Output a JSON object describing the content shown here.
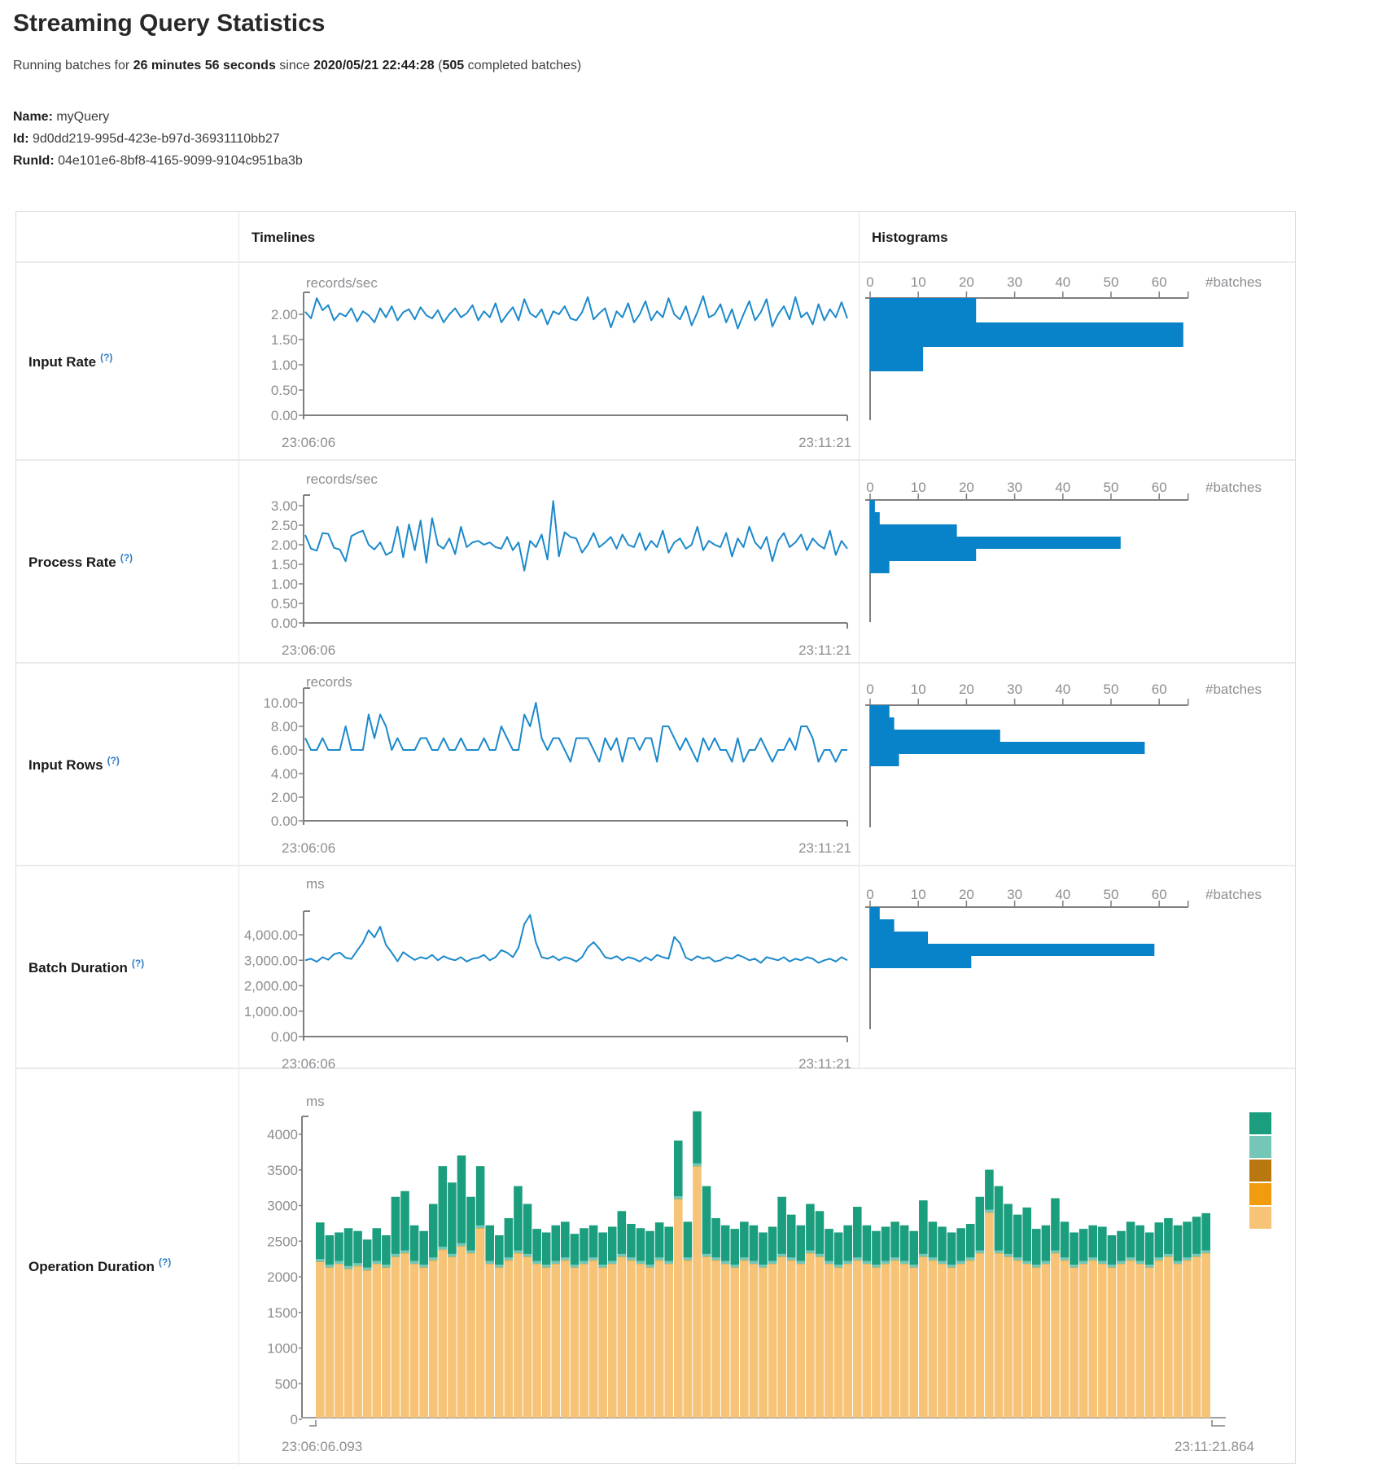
{
  "header": {
    "title": "Streaming Query Statistics",
    "subtitle_parts": [
      {
        "text": "Running batches for ",
        "bold": false
      },
      {
        "text": "26 minutes 56 seconds",
        "bold": true
      },
      {
        "text": " since ",
        "bold": false
      },
      {
        "text": "2020/05/21 22:44:28",
        "bold": true
      },
      {
        "text": " (",
        "bold": false
      },
      {
        "text": "505",
        "bold": true
      },
      {
        "text": " completed batches)",
        "bold": false
      }
    ]
  },
  "meta": [
    {
      "label": "Name:",
      "value": "myQuery"
    },
    {
      "label": "Id:",
      "value": "9d0dd219-995d-423e-b97d-36931110bb27"
    },
    {
      "label": "RunId:",
      "value": "04e101e6-8bf8-4165-9099-9104c951ba3b"
    }
  ],
  "table": {
    "timelines_header": "Timelines",
    "histograms_header": "Histograms",
    "rows": [
      {
        "label": "Input Rate",
        "help": "(?)"
      },
      {
        "label": "Process Rate",
        "help": "(?)"
      },
      {
        "label": "Input Rows",
        "help": "(?)"
      },
      {
        "label": "Batch Duration",
        "help": "(?)"
      },
      {
        "label": "Operation Duration",
        "help": "(?)"
      }
    ]
  },
  "colors": {
    "line_blue": "#1b89cb",
    "bar_blue": "#0882c9",
    "axis_gray": "#7f7f7f",
    "tick_text": "#8e8e93",
    "teal": "#1b9e7d",
    "light_teal": "#74c6b7",
    "dark_amber": "#b8780f",
    "orange": "#f19b0e",
    "tan": "#f7c377",
    "help_blue": "#2e7cc4"
  },
  "chart_data": [
    {
      "name": "input-rate",
      "type": "line",
      "unit": "records/sec",
      "yticks": [
        "2.00",
        "1.50",
        "1.00",
        "0.50",
        "0.00"
      ],
      "x_start": "23:06:06",
      "x_end": "23:11:21",
      "values": [
        2.05,
        1.92,
        2.32,
        2.08,
        2.18,
        1.88,
        2.02,
        1.96,
        2.12,
        1.86,
        2.06,
        1.98,
        1.84,
        2.12,
        1.94,
        2.16,
        1.88,
        2.04,
        2.1,
        1.9,
        2.14,
        1.98,
        1.92,
        2.08,
        1.84,
        2.0,
        2.12,
        1.94,
        2.02,
        2.18,
        1.88,
        2.06,
        1.94,
        2.22,
        1.84,
        2.0,
        2.14,
        1.88,
        2.3,
        2.02,
        1.94,
        2.1,
        1.8,
        2.06,
        2.0,
        2.16,
        1.92,
        1.88,
        2.04,
        2.34,
        1.9,
        2.02,
        2.12,
        1.74,
        2.06,
        1.94,
        2.22,
        1.84,
        2.0,
        2.26,
        1.88,
        2.06,
        1.94,
        2.32,
        2.0,
        1.9,
        2.16,
        1.78,
        2.04,
        2.36,
        1.94,
        2.0,
        2.2,
        1.84,
        2.1,
        1.72,
        2.0,
        2.26,
        1.88,
        2.04,
        2.3,
        1.76,
        2.0,
        2.16,
        1.9,
        2.34,
        1.94,
        2.04,
        1.8,
        2.2,
        1.88,
        2.1,
        1.94,
        2.24,
        1.92
      ],
      "histogram": {
        "xticks": [
          "0",
          "10",
          "20",
          "30",
          "40",
          "50",
          "60"
        ],
        "unit_label": "#batches",
        "bin_counts": [
          22,
          65,
          11
        ]
      }
    },
    {
      "name": "process-rate",
      "type": "line",
      "unit": "records/sec",
      "yticks": [
        "3.00",
        "2.50",
        "2.00",
        "1.50",
        "1.00",
        "0.50",
        "0.00"
      ],
      "x_start": "23:06:06",
      "x_end": "23:11:21",
      "values": [
        2.25,
        1.9,
        1.85,
        2.3,
        2.28,
        1.92,
        1.88,
        1.58,
        2.22,
        2.3,
        2.36,
        2.0,
        1.88,
        2.06,
        1.74,
        1.82,
        2.46,
        1.68,
        2.52,
        1.86,
        2.62,
        1.54,
        2.68,
        2.0,
        1.9,
        2.16,
        1.76,
        2.46,
        1.94,
        2.06,
        2.1,
        2.0,
        2.06,
        1.94,
        1.9,
        2.2,
        1.86,
        2.06,
        1.34,
        2.1,
        1.94,
        2.26,
        1.62,
        3.12,
        1.7,
        2.32,
        2.2,
        2.16,
        1.8,
        2.0,
        2.3,
        1.94,
        2.06,
        2.2,
        1.9,
        2.26,
        2.0,
        1.94,
        2.3,
        1.86,
        2.1,
        1.94,
        2.36,
        1.8,
        2.06,
        2.16,
        1.9,
        2.0,
        2.46,
        1.86,
        2.1,
        2.0,
        1.94,
        2.3,
        1.7,
        2.16,
        1.94,
        2.46,
        2.06,
        1.9,
        2.2,
        1.58,
        2.1,
        2.3,
        1.94,
        2.06,
        2.26,
        1.86,
        2.16,
        2.0,
        1.9,
        2.36,
        1.74,
        2.1,
        1.9
      ],
      "histogram": {
        "xticks": [
          "0",
          "10",
          "20",
          "30",
          "40",
          "50",
          "60"
        ],
        "unit_label": "#batches",
        "bin_counts": [
          1,
          2,
          18,
          52,
          22,
          4
        ]
      }
    },
    {
      "name": "input-rows",
      "type": "line",
      "unit": "records",
      "yticks": [
        "10.00",
        "8.00",
        "6.00",
        "4.00",
        "2.00",
        "0.00"
      ],
      "x_start": "23:06:06",
      "x_end": "23:11:21",
      "values": [
        7,
        6,
        6,
        7,
        6,
        6,
        6,
        8,
        6,
        6,
        6,
        9,
        7,
        9,
        8,
        6,
        7,
        6,
        6,
        6,
        7,
        7,
        6,
        6,
        7,
        6,
        6,
        7,
        6,
        6,
        6,
        7,
        6,
        6,
        8,
        7,
        6,
        6,
        9,
        8,
        10,
        7,
        6,
        7,
        7,
        6,
        5,
        7,
        7,
        7,
        6,
        5,
        7,
        6,
        7,
        5,
        7,
        7,
        6,
        7,
        7,
        5,
        8,
        8,
        7,
        6,
        7,
        6,
        5,
        7,
        6,
        7,
        6,
        6,
        5,
        7,
        5,
        6,
        6,
        7,
        6,
        5,
        6,
        6,
        7,
        6,
        8,
        8,
        7,
        5,
        6,
        6,
        5,
        6,
        6
      ],
      "histogram": {
        "xticks": [
          "0",
          "10",
          "20",
          "30",
          "40",
          "50",
          "60"
        ],
        "unit_label": "#batches",
        "bin_counts": [
          4,
          5,
          27,
          57,
          6
        ]
      }
    },
    {
      "name": "batch-duration",
      "type": "line",
      "unit": "ms",
      "yticks": [
        "4,000.00",
        "3,000.00",
        "2,000.00",
        "1,000.00",
        "0.00"
      ],
      "x_start": "23:06:06",
      "x_end": "23:11:21",
      "values": [
        3000,
        3060,
        2940,
        3120,
        3020,
        3240,
        3300,
        3100,
        3050,
        3380,
        3700,
        4180,
        3900,
        4320,
        3600,
        3300,
        2960,
        3320,
        3160,
        3010,
        3120,
        3060,
        3210,
        3000,
        3160,
        3060,
        3000,
        3120,
        2950,
        3060,
        3100,
        3210,
        3000,
        3120,
        3400,
        3300,
        3120,
        3500,
        4420,
        4780,
        3700,
        3120,
        3060,
        3160,
        3000,
        3120,
        3060,
        2950,
        3120,
        3510,
        3710,
        3460,
        3120,
        3060,
        3160,
        3000,
        3120,
        3060,
        2950,
        3120,
        3000,
        3210,
        3120,
        3060,
        3920,
        3660,
        3100,
        3000,
        3160,
        3060,
        3120,
        2950,
        3000,
        3120,
        3060,
        3210,
        3120,
        3000,
        3060,
        2900,
        3120,
        3060,
        3000,
        3120,
        2950,
        3060,
        3000,
        3120,
        3060,
        2900,
        3000,
        3060,
        2950,
        3120,
        3000
      ],
      "histogram": {
        "xticks": [
          "0",
          "10",
          "20",
          "30",
          "40",
          "50",
          "60"
        ],
        "unit_label": "#batches",
        "bin_counts": [
          2,
          5,
          12,
          59,
          21
        ]
      }
    },
    {
      "name": "operation-duration",
      "type": "stacked-bar",
      "unit": "ms",
      "yticks": [
        "4000",
        "3500",
        "3000",
        "2500",
        "2000",
        "1500",
        "1000",
        "500",
        "0"
      ],
      "x_start": "23:06:06.093",
      "x_end": "23:11:21.864",
      "legend_colors": [
        "#1b9e7d",
        "#74c6b7",
        "#b8780f",
        "#f19b0e",
        "#f7c377"
      ],
      "stack": {
        "base_values": [
          2180,
          2100,
          2150,
          2080,
          2120,
          2060,
          2150,
          2100,
          2250,
          2300,
          2150,
          2100,
          2200,
          2350,
          2250,
          2400,
          2300,
          2650,
          2150,
          2100,
          2200,
          2300,
          2250,
          2150,
          2100,
          2150,
          2200,
          2100,
          2150,
          2200,
          2100,
          2150,
          2250,
          2200,
          2150,
          2100,
          2200,
          2150,
          3060,
          2200,
          3520,
          2250,
          2200,
          2150,
          2100,
          2200,
          2150,
          2100,
          2150,
          2250,
          2200,
          2150,
          2300,
          2250,
          2150,
          2100,
          2150,
          2200,
          2150,
          2100,
          2150,
          2200,
          2150,
          2100,
          2250,
          2200,
          2150,
          2100,
          2150,
          2200,
          2300,
          2870,
          2300,
          2250,
          2200,
          2150,
          2100,
          2150,
          2300,
          2200,
          2100,
          2150,
          2200,
          2150,
          2100,
          2150,
          2200,
          2150,
          2100,
          2200,
          2250,
          2150,
          2200,
          2250,
          2300
        ],
        "totals": [
          2740,
          2560,
          2600,
          2660,
          2620,
          2500,
          2660,
          2560,
          3100,
          3180,
          2700,
          2620,
          3000,
          3530,
          3300,
          3680,
          3100,
          3530,
          2700,
          2560,
          2800,
          3250,
          3000,
          2650,
          2600,
          2700,
          2750,
          2580,
          2660,
          2700,
          2600,
          2680,
          2900,
          2720,
          2660,
          2620,
          2740,
          2680,
          3890,
          2750,
          4300,
          3250,
          2800,
          2700,
          2650,
          2750,
          2700,
          2600,
          2680,
          3100,
          2850,
          2700,
          3000,
          2900,
          2650,
          2600,
          2700,
          2960,
          2700,
          2620,
          2680,
          2750,
          2700,
          2620,
          3050,
          2750,
          2680,
          2600,
          2660,
          2720,
          3100,
          3480,
          3250,
          3000,
          2850,
          2950,
          2650,
          2700,
          3080,
          2750,
          2600,
          2650,
          2700,
          2680,
          2560,
          2620,
          2750,
          2700,
          2600,
          2740,
          2800,
          2700,
          2750,
          2820,
          2870
        ],
        "mid_band_value": 40,
        "thin_band_value": 8
      }
    }
  ]
}
